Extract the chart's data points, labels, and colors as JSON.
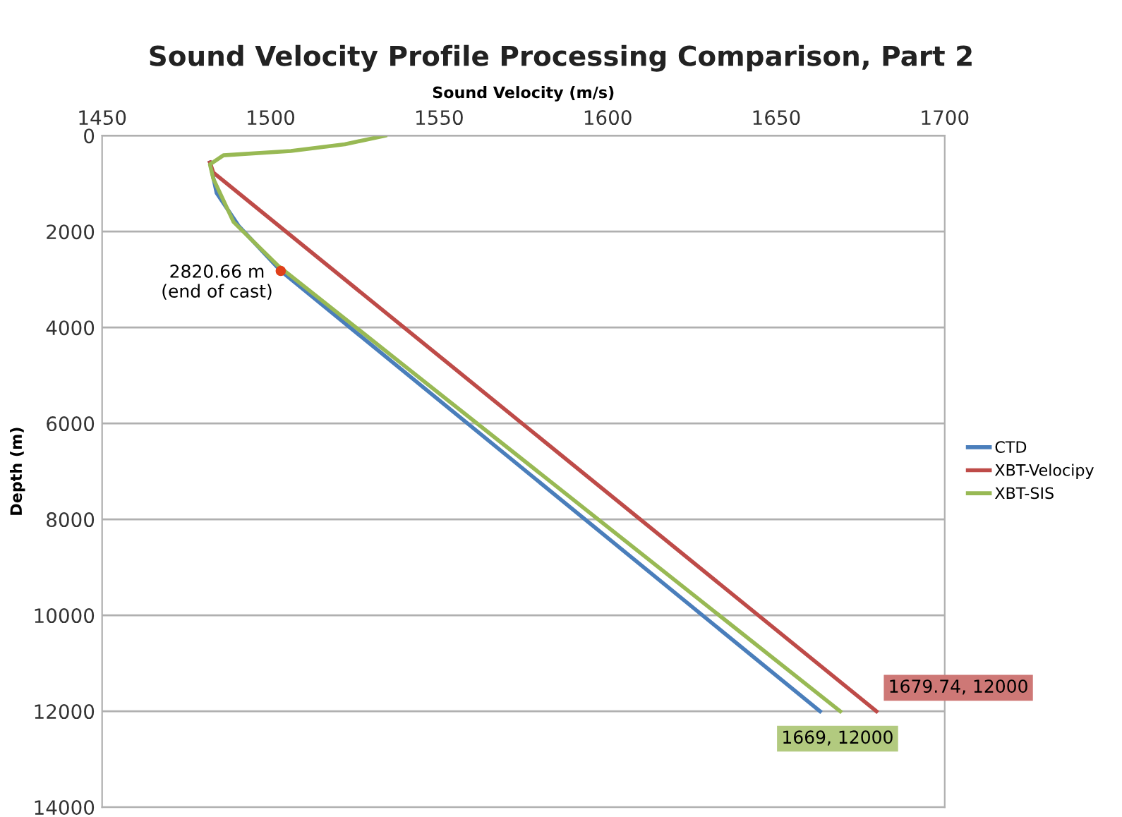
{
  "chart_data": {
    "type": "line",
    "title": "Sound Velocity Profile Processing Comparison, Part 2",
    "xlabel": "Sound Velocity (m/s)",
    "ylabel": "Depth (m)",
    "xlim": [
      1450,
      1700
    ],
    "xticks": [
      1450,
      1500,
      1550,
      1600,
      1650,
      1700
    ],
    "ylim": [
      14000,
      0
    ],
    "yticks": [
      0,
      2000,
      4000,
      6000,
      8000,
      10000,
      12000,
      14000
    ],
    "grid": "y",
    "legend": "right",
    "line_style": "solid",
    "series": [
      {
        "name": "CTD",
        "color": "#4a7ebb",
        "x": [
          1482,
          1484,
          1490.5,
          1503,
          1663
        ],
        "values": [
          560,
          1200,
          1880,
          2820,
          12000
        ]
      },
      {
        "name": "XBT-Velocipy",
        "color": "#be4b48",
        "x": [
          1482,
          1483,
          1679.74
        ],
        "values": [
          560,
          770,
          12000
        ],
        "value_labels": [
          null,
          null,
          "1679.74, 12000"
        ]
      },
      {
        "name": "XBT-SIS",
        "color": "#98b954",
        "x": [
          1534,
          1522,
          1506,
          1486,
          1482,
          1483,
          1489,
          1502,
          1669
        ],
        "values": [
          0,
          180,
          320,
          410,
          600,
          900,
          1800,
          2700,
          12000
        ],
        "value_labels": [
          null,
          null,
          null,
          null,
          null,
          null,
          null,
          null,
          "1669, 12000"
        ]
      },
      {
        "type": "scatter",
        "color": "#e0401a",
        "x": [
          1503
        ],
        "values": [
          2820.66
        ]
      }
    ],
    "annotations": [
      {
        "text": "2820.66 m\n(end of cast)",
        "x": 1503,
        "y": 2820.66
      }
    ]
  }
}
